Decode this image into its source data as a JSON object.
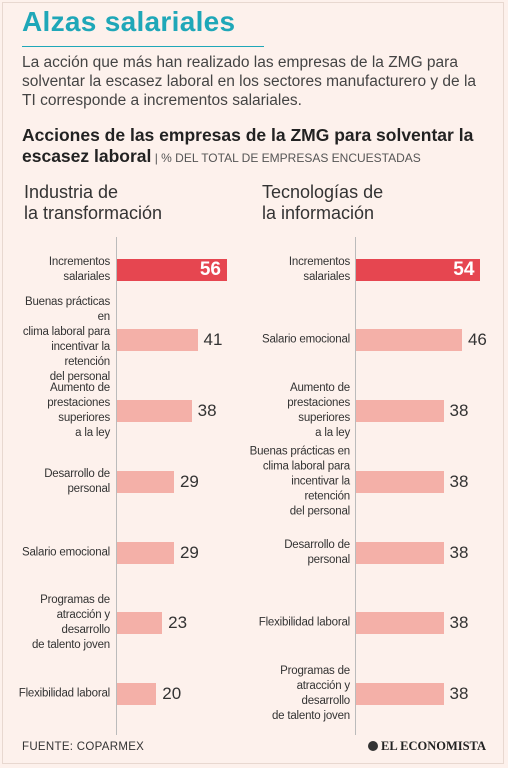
{
  "header": {
    "title": "Alzas salariales",
    "intro": "La acción que más han realizado las empresas de la ZMG para solventar la escasez laboral en los sectores manufacturero y de la TI corresponde a incrementos salariales.",
    "subtitle": "Acciones de las empresas de la ZMG para solventar la escasez laboral",
    "subtitle_note": " | % DEL TOTAL DE EMPRESAS ENCUESTADAS"
  },
  "footer": {
    "source": "FUENTE: COPARMEX",
    "logo": "EL ECONOMISTA"
  },
  "colors": {
    "highlight": "#e64650",
    "bar": "#f4b0a8",
    "accent": "#1fa7b8"
  },
  "chart_data": [
    {
      "type": "bar",
      "orientation": "horizontal",
      "title": "Industria de la transformación",
      "categories": [
        "Incrementos salariales",
        "Buenas prácticas en clima laboral para incentivar la retención del personal",
        "Aumento de prestaciones superiores a la ley",
        "Desarrollo de personal",
        "Salario emocional",
        "Programas de atracción y desarrollo de talento joven",
        "Flexibilidad laboral"
      ],
      "values": [
        56,
        41,
        38,
        29,
        29,
        23,
        20
      ],
      "label_lines": [
        [
          "Incrementos salariales"
        ],
        [
          "Buenas prácticas en",
          "clima laboral para",
          "incentivar la retención",
          "del personal"
        ],
        [
          "Aumento de",
          "prestaciones superiores",
          "a la ley"
        ],
        [
          "Desarrollo de personal"
        ],
        [
          "Salario emocional"
        ],
        [
          "Programas de",
          "atracción y desarrollo",
          "de talento joven"
        ],
        [
          "Flexibilidad laboral"
        ]
      ],
      "highlight_index": 0
    },
    {
      "type": "bar",
      "orientation": "horizontal",
      "title": "Tecnologías de la información",
      "categories": [
        "Incrementos salariales",
        "Salario emocional",
        "Aumento de prestaciones superiores a la ley",
        "Buenas prácticas en clima laboral para incentivar la retención del personal",
        "Desarrollo de personal",
        "Flexibilidad laboral",
        "Programas de atracción y desarrollo de talento joven"
      ],
      "values": [
        54,
        46,
        38,
        38,
        38,
        38,
        38
      ],
      "label_lines": [
        [
          "Incrementos salariales"
        ],
        [
          "Salario emocional"
        ],
        [
          "Aumento de",
          "prestaciones superiores",
          "a la ley"
        ],
        [
          "Buenas prácticas en",
          "clima laboral para",
          "incentivar la retención",
          "del personal"
        ],
        [
          "Desarrollo de personal"
        ],
        [
          "Flexibilidad laboral"
        ],
        [
          "Programas de",
          "atracción y desarrollo",
          "de talento joven"
        ]
      ],
      "highlight_index": 0
    }
  ]
}
